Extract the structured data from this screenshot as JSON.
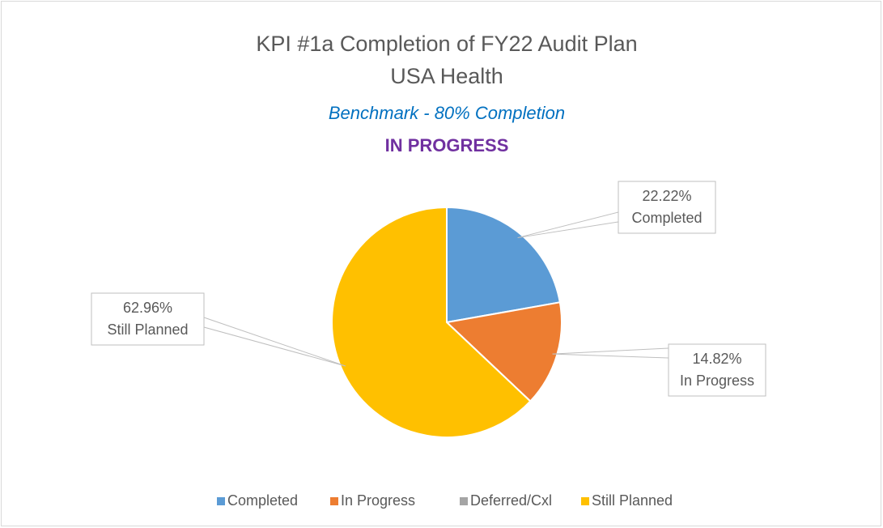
{
  "chart_data": {
    "type": "pie",
    "title": "KPI #1a Completion of FY22 Audit Plan",
    "subtitle": "USA Health",
    "annotations": [
      "Benchmark - 80% Completion",
      "IN PROGRESS"
    ],
    "categories": [
      "Completed",
      "In Progress",
      "Deferred/Cxl",
      "Still Planned"
    ],
    "values": [
      22.22,
      14.82,
      0,
      62.96
    ],
    "value_labels": [
      "22.22%",
      "14.82%",
      null,
      "62.96%"
    ],
    "colors": [
      "#5b9bd5",
      "#ed7d31",
      "#a5a5a5",
      "#ffc000"
    ],
    "legend": "bottom"
  }
}
